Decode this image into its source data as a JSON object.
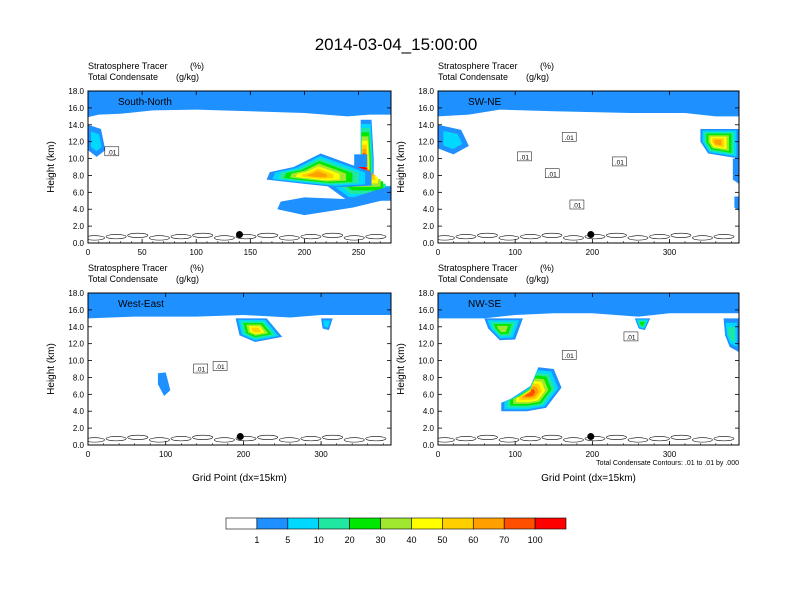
{
  "title": "2014-03-04_15:00:00",
  "colors": {
    "levels": [
      "#ffffff",
      "#1e90ff",
      "#00d8ff",
      "#20e8a0",
      "#00e800",
      "#a0e830",
      "#ffff00",
      "#ffd000",
      "#ffa000",
      "#ff5000",
      "#ff0000"
    ]
  },
  "chart_data": [
    {
      "type": "heatmap",
      "panel_label": "South-North",
      "label_left_1": "Stratosphere Tracer",
      "label_right_1": "(%)",
      "label_left_2": "Total Condensate",
      "label_right_2": "(g/kg)",
      "ylabel": "Height (km)",
      "xlabel": "",
      "xlim": [
        0,
        280
      ],
      "ylim": [
        0,
        18
      ],
      "xticks": [
        0,
        50,
        100,
        150,
        200,
        250
      ],
      "yticks": [
        "0.0",
        "2.0",
        "4.0",
        "6.0",
        "8.0",
        "10.0",
        "12.0",
        "14.0",
        "16.0",
        "18.0"
      ],
      "tropopause": [
        [
          0,
          14.9
        ],
        [
          10,
          15.2
        ],
        [
          30,
          15.3
        ],
        [
          60,
          15.7
        ],
        [
          100,
          15.8
        ],
        [
          150,
          15.6
        ],
        [
          200,
          15.4
        ],
        [
          240,
          15.0
        ],
        [
          260,
          15.2
        ],
        [
          280,
          15.2
        ]
      ],
      "intrusions": [
        {
          "points": [
            [
              252,
              14.6
            ],
            [
              262,
              14.6
            ],
            [
              264,
              10.0
            ],
            [
              264,
              6.5
            ],
            [
              280,
              6.5
            ],
            [
              280,
              5.0
            ],
            [
              240,
              5.0
            ],
            [
              212,
              7.6
            ],
            [
              240,
              8.5
            ],
            [
              252,
              10
            ],
            [
              252,
              14.6
            ]
          ],
          "peak": 10
        },
        {
          "points": [
            [
              165,
              7.5
            ],
            [
              200,
              7.0
            ],
            [
              230,
              6.6
            ],
            [
              262,
              6.8
            ],
            [
              262,
              8.4
            ],
            [
              215,
              10.6
            ],
            [
              190,
              9.0
            ],
            [
              168,
              8.4
            ]
          ],
          "peak": 8
        },
        {
          "points": [
            [
              175,
              4.0
            ],
            [
              200,
              3.3
            ],
            [
              245,
              4.2
            ],
            [
              280,
              5.3
            ],
            [
              280,
              6.8
            ],
            [
              240,
              5.2
            ],
            [
              200,
              5.4
            ],
            [
              178,
              4.9
            ]
          ],
          "peak": 1
        },
        {
          "points": [
            [
              0,
              14.0
            ],
            [
              12,
              13.5
            ],
            [
              16,
              11.0
            ],
            [
              8,
              10.2
            ],
            [
              0,
              11.0
            ]
          ],
          "peak": 2
        },
        {
          "points": [
            [
              246,
              10.5
            ],
            [
              258,
              10.5
            ],
            [
              258,
              9.0
            ],
            [
              246,
              9.0
            ]
          ],
          "peak": 1
        }
      ],
      "contour_labels": [
        {
          "x": 22,
          "y": 10.8,
          "text": ".01"
        }
      ],
      "marker": {
        "x": 140,
        "y": 1.0
      }
    },
    {
      "type": "heatmap",
      "panel_label": "SW-NE",
      "label_left_1": "Stratosphere Tracer",
      "label_right_1": "(%)",
      "label_left_2": "Total Condensate",
      "label_right_2": "(g/kg)",
      "ylabel": "Height (km)",
      "xlabel": "",
      "xlim": [
        0,
        390
      ],
      "ylim": [
        0,
        18
      ],
      "xticks": [
        0,
        100,
        200,
        300
      ],
      "yticks": [
        "0.0",
        "2.0",
        "4.0",
        "6.0",
        "8.0",
        "10.0",
        "12.0",
        "14.0",
        "16.0",
        "18.0"
      ],
      "tropopause": [
        [
          0,
          15.0
        ],
        [
          40,
          15.2
        ],
        [
          80,
          15.8
        ],
        [
          150,
          15.6
        ],
        [
          250,
          15.4
        ],
        [
          320,
          15.4
        ],
        [
          360,
          15.0
        ],
        [
          390,
          15.0
        ]
      ],
      "intrusions": [
        {
          "points": [
            [
              340,
              13.5
            ],
            [
              390,
              13.5
            ],
            [
              390,
              10.0
            ],
            [
              350,
              10.6
            ],
            [
              340,
              12.0
            ]
          ],
          "peak": 8
        },
        {
          "points": [
            [
              0,
              14.0
            ],
            [
              30,
              13.4
            ],
            [
              40,
              11.5
            ],
            [
              20,
              10.5
            ],
            [
              0,
              11.2
            ]
          ],
          "peak": 2
        },
        {
          "points": [
            [
              382,
              10.0
            ],
            [
              390,
              10.0
            ],
            [
              390,
              7.0
            ],
            [
              382,
              7.5
            ]
          ],
          "peak": 1
        },
        {
          "points": [
            [
              384,
              5.5
            ],
            [
              390,
              5.5
            ],
            [
              390,
              3.8
            ],
            [
              384,
              4.2
            ]
          ],
          "peak": 1
        }
      ],
      "contour_labels": [
        {
          "x": 112,
          "y": 10.2,
          "text": ".01"
        },
        {
          "x": 170,
          "y": 12.5,
          "text": ".01"
        },
        {
          "x": 148,
          "y": 8.2,
          "text": ".01"
        },
        {
          "x": 180,
          "y": 4.5,
          "text": ".01"
        },
        {
          "x": 235,
          "y": 9.6,
          "text": ".01"
        }
      ],
      "marker": {
        "x": 198,
        "y": 1.0
      }
    },
    {
      "type": "heatmap",
      "panel_label": "West-East",
      "label_left_1": "Stratosphere Tracer",
      "label_right_1": "(%)",
      "label_left_2": "Total Condensate",
      "label_right_2": "(g/kg)",
      "ylabel": "Height (km)",
      "xlabel": "Grid Point (dx=15km)",
      "xlim": [
        0,
        390
      ],
      "ylim": [
        0,
        18
      ],
      "xticks": [
        0,
        100,
        200,
        300
      ],
      "yticks": [
        "0.0",
        "2.0",
        "4.0",
        "6.0",
        "8.0",
        "10.0",
        "12.0",
        "14.0",
        "16.0",
        "18.0"
      ],
      "tropopause": [
        [
          0,
          15.0
        ],
        [
          60,
          15.2
        ],
        [
          140,
          15.2
        ],
        [
          200,
          15.4
        ],
        [
          260,
          15.1
        ],
        [
          300,
          15.4
        ],
        [
          390,
          15.4
        ]
      ],
      "intrusions": [
        {
          "points": [
            [
              190,
              15.0
            ],
            [
              230,
              15.0
            ],
            [
              250,
              12.8
            ],
            [
              215,
              12.2
            ],
            [
              195,
              13.0
            ]
          ],
          "peak": 7
        },
        {
          "points": [
            [
              90,
              8.5
            ],
            [
              100,
              8.6
            ],
            [
              106,
              6.5
            ],
            [
              98,
              5.8
            ],
            [
              90,
              7.2
            ]
          ],
          "peak": 1
        },
        {
          "points": [
            [
              300,
              15.0
            ],
            [
              315,
              15.0
            ],
            [
              310,
              13.6
            ],
            [
              302,
              13.8
            ]
          ],
          "peak": 2
        }
      ],
      "contour_labels": [
        {
          "x": 145,
          "y": 9.0,
          "text": ".01"
        },
        {
          "x": 170,
          "y": 9.3,
          "text": ".01"
        }
      ],
      "marker": {
        "x": 196,
        "y": 1.0
      }
    },
    {
      "type": "heatmap",
      "panel_label": "NW-SE",
      "label_left_1": "Stratosphere Tracer",
      "label_right_1": "(%)",
      "label_left_2": "Total Condensate",
      "label_right_2": "(g/kg)",
      "ylabel": "Height (km)",
      "xlabel": "Grid Point (dx=15km)",
      "xlim": [
        0,
        390
      ],
      "ylim": [
        0,
        18
      ],
      "xticks": [
        0,
        100,
        200,
        300
      ],
      "yticks": [
        "0.0",
        "2.0",
        "4.0",
        "6.0",
        "8.0",
        "10.0",
        "12.0",
        "14.0",
        "16.0",
        "18.0"
      ],
      "tropopause": [
        [
          0,
          15.0
        ],
        [
          60,
          15.0
        ],
        [
          100,
          15.4
        ],
        [
          150,
          15.6
        ],
        [
          200,
          15.6
        ],
        [
          260,
          15.2
        ],
        [
          300,
          15.6
        ],
        [
          390,
          15.6
        ]
      ],
      "intrusions": [
        {
          "points": [
            [
              60,
              15.0
            ],
            [
              110,
              15.0
            ],
            [
              100,
              12.5
            ],
            [
              80,
              12.4
            ],
            [
              65,
              13.8
            ]
          ],
          "peak": 5
        },
        {
          "points": [
            [
              82,
              4.0
            ],
            [
              115,
              4.0
            ],
            [
              140,
              4.4
            ],
            [
              160,
              6.8
            ],
            [
              150,
              9.0
            ],
            [
              130,
              9.2
            ],
            [
              120,
              7.0
            ],
            [
              95,
              5.5
            ],
            [
              82,
              5.0
            ]
          ],
          "peak": 9
        },
        {
          "points": [
            [
              255,
              15.0
            ],
            [
              275,
              15.0
            ],
            [
              268,
              13.6
            ],
            [
              260,
              13.8
            ]
          ],
          "peak": 4
        },
        {
          "points": [
            [
              370,
              15.0
            ],
            [
              390,
              15.0
            ],
            [
              390,
              11.0
            ],
            [
              378,
              11.6
            ],
            [
              372,
              13.0
            ]
          ],
          "peak": 3
        }
      ],
      "contour_labels": [
        {
          "x": 250,
          "y": 12.8,
          "text": ".01"
        },
        {
          "x": 170,
          "y": 10.6,
          "text": ".01"
        }
      ],
      "marker": {
        "x": 198,
        "y": 1.0
      },
      "footnote": "Total Condensate Contours: .01 to .01 by .000"
    }
  ],
  "colorbar": {
    "labels": [
      "1",
      "5",
      "10",
      "20",
      "30",
      "40",
      "50",
      "60",
      "70",
      "100"
    ]
  }
}
